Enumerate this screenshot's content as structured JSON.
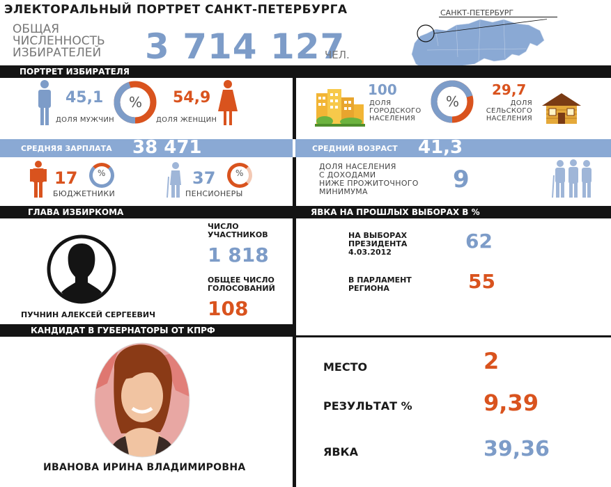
{
  "header": {
    "title": "ЭЛЕКТОРАЛЬНЫЙ ПОРТРЕТ САНКТ-ПЕТЕРБУРГА",
    "voters_label_1": "ОБЩАЯ",
    "voters_label_2": "ЧИСЛЕННОСТЬ",
    "voters_label_3": "ИЗБИРАТЕЛЕЙ",
    "voters_value": "3 714 127",
    "voters_unit": "ЧЕЛ.",
    "map_label": "САНКТ-ПЕТЕРБУРГ"
  },
  "portrait": {
    "section_title": "ПОРТРЕТ ИЗБИРАТЕЛЯ",
    "men_value": "45,1",
    "men_label": "ДОЛЯ МУЖЧИН",
    "women_value": "54,9",
    "women_label": "ДОЛЯ ЖЕНЩИН",
    "percent_sign": "%",
    "urban_value": "100",
    "urban_label_1": "ДОЛЯ",
    "urban_label_2": "ГОРОДСКОГО",
    "urban_label_3": "НАСЕЛЕНИЯ",
    "rural_value": "29,7",
    "rural_label_1": "ДОЛЯ",
    "rural_label_2": "СЕЛЬСКОГО",
    "rural_label_3": "НАСЕЛЕНИЯ",
    "men_share": 45.1,
    "urban_share": 100,
    "rural_share": 29.7
  },
  "salary": {
    "label": "СРЕДНЯЯ ЗАРПЛАТА",
    "value": "38 471"
  },
  "age": {
    "label": "СРЕДНИЙ ВОЗРАСТ",
    "value": "41,3"
  },
  "social": {
    "budget_value": "17",
    "budget_label": "БЮДЖЕТНИКИ",
    "pension_value": "37",
    "pension_label": "ПЕНСИОНЕРЫ",
    "poverty_label_1": "ДОЛЯ НАСЕЛЕНИЯ",
    "poverty_label_2": "С ДОХОДАМИ",
    "poverty_label_3": "НИЖЕ ПРОЖИТОЧНОГО",
    "poverty_label_4": "МИНИМУМА",
    "poverty_value": "9"
  },
  "commission": {
    "section_title": "ГЛАВА ИЗБИРКОМА",
    "head_name": "ПУЧНИН АЛЕКСЕЙ СЕРГЕЕВИЧ",
    "members_label_1": "ЧИСЛО",
    "members_label_2": "УЧАСТНИКОВ",
    "members_value": "1 818",
    "votes_label_1": "ОБЩЕЕ ЧИСЛО",
    "votes_label_2": "ГОЛОСОВАНИЙ",
    "votes_value": "108"
  },
  "turnout": {
    "section_title": "ЯВКА НА ПРОШЛЫХ ВЫБОРАХ В %",
    "president_label_1": "НА ВЫБОРАХ",
    "president_label_2": "ПРЕЗИДЕНТА",
    "president_label_3": "4.03.2012",
    "president_value": "62",
    "parliament_label_1": "В ПАРЛАМЕНТ",
    "parliament_label_2": "РЕГИОНА",
    "parliament_value": "55"
  },
  "candidate": {
    "section_title": "КАНДИДАТ В ГУБЕРНАТОРЫ ОТ КПРФ",
    "name": "ИВАНОВА ИРИНА ВЛАДИМИРОВНА",
    "place_label": "МЕСТО",
    "place_value": "2",
    "result_label": "РЕЗУЛЬТАТ %",
    "result_value": "9,39",
    "turnout_label": "ЯВКА",
    "turnout_value": "39,36"
  },
  "colors": {
    "blue": "#7d9cc8",
    "orange": "#d9531e",
    "dark": "#141414"
  }
}
